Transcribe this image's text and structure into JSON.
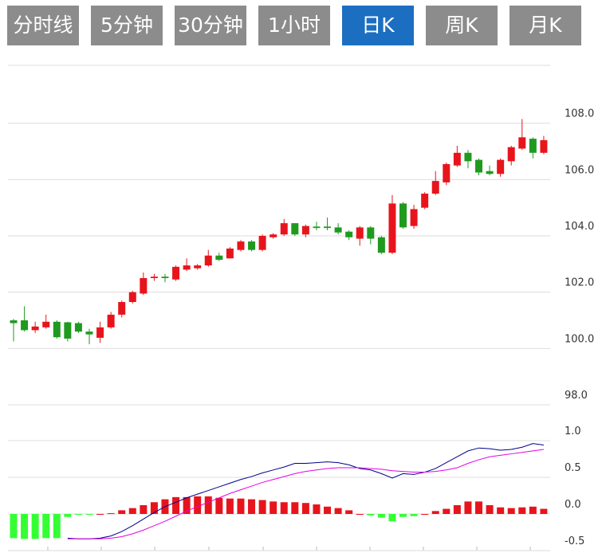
{
  "tabs": [
    "分时线",
    "5分钟",
    "30分钟",
    "1小时",
    "日K",
    "周K",
    "月K"
  ],
  "active_tab": 4,
  "chart_data": [
    {
      "type": "candlestick",
      "up_color": "#e8141c",
      "down_color": "#1f9a1f",
      "grid": true,
      "ylim": [
        98,
        110
      ],
      "yticks": [
        {
          "value": 98,
          "label": "98.0"
        },
        {
          "value": 100,
          "label": "100.0"
        },
        {
          "value": 102,
          "label": "102.0"
        },
        {
          "value": 104,
          "label": "104.0"
        },
        {
          "value": 106,
          "label": "106.0"
        },
        {
          "value": 108,
          "label": "108.0"
        }
      ],
      "open": [
        101.0,
        101.0,
        100.65,
        100.75,
        100.95,
        100.93,
        100.9,
        100.6,
        100.38,
        100.75,
        101.2,
        101.65,
        101.95,
        102.5,
        102.55,
        102.45,
        102.8,
        102.85,
        102.95,
        103.3,
        103.2,
        103.5,
        103.8,
        103.5,
        103.95,
        104.05,
        104.45,
        104.05,
        104.33,
        104.33,
        104.3,
        104.15,
        103.9,
        104.3,
        103.95,
        103.4,
        105.15,
        104.35,
        105.0,
        105.5,
        105.9,
        106.5,
        106.95,
        106.7,
        106.3,
        106.2,
        106.65,
        107.1,
        107.45,
        106.95
      ],
      "high": [
        101.05,
        101.5,
        100.95,
        101.2,
        101.0,
        100.95,
        100.95,
        100.7,
        100.95,
        101.3,
        101.7,
        102.05,
        102.7,
        102.65,
        102.65,
        102.95,
        103.2,
        103.0,
        103.5,
        103.4,
        103.6,
        103.85,
        103.85,
        104.05,
        104.1,
        104.6,
        104.45,
        104.4,
        104.5,
        104.65,
        104.45,
        104.2,
        104.35,
        104.35,
        104.0,
        105.45,
        105.2,
        105.1,
        105.55,
        106.3,
        106.6,
        107.2,
        107.05,
        106.75,
        106.5,
        106.75,
        107.2,
        108.15,
        107.5,
        107.55
      ],
      "low": [
        100.25,
        100.6,
        100.55,
        100.7,
        100.35,
        100.25,
        100.55,
        100.15,
        100.2,
        100.7,
        101.1,
        101.6,
        101.9,
        102.4,
        102.35,
        102.4,
        102.75,
        102.8,
        102.9,
        103.1,
        103.2,
        103.45,
        103.45,
        103.45,
        103.9,
        104.0,
        104.0,
        103.95,
        104.2,
        104.2,
        104.05,
        103.85,
        103.65,
        103.7,
        103.35,
        103.35,
        104.25,
        104.25,
        104.95,
        105.45,
        105.8,
        106.45,
        106.4,
        106.15,
        106.15,
        106.1,
        106.5,
        107.05,
        106.75,
        106.9
      ],
      "close": [
        100.9,
        100.65,
        100.78,
        100.95,
        100.4,
        100.35,
        100.6,
        100.5,
        100.75,
        101.2,
        101.65,
        102.0,
        102.5,
        102.55,
        102.5,
        102.9,
        102.95,
        102.95,
        103.3,
        103.15,
        103.55,
        103.8,
        103.5,
        104.0,
        104.05,
        104.45,
        104.05,
        104.35,
        104.28,
        104.28,
        104.12,
        103.95,
        104.3,
        103.9,
        103.4,
        105.15,
        104.3,
        104.95,
        105.5,
        105.95,
        106.55,
        106.95,
        106.65,
        106.25,
        106.2,
        106.7,
        107.15,
        107.5,
        106.95,
        107.4
      ]
    },
    {
      "type": "macd",
      "up_color": "#e8141c",
      "down_color": "#33ff33",
      "grid": true,
      "ylim": [
        -0.5,
        1.5
      ],
      "yticks": [
        -0.5,
        {
          "value": 0,
          "label": "0.0"
        },
        0.5,
        {
          "value": 1,
          "label": "1.0"
        }
      ],
      "histogram": [
        -0.33,
        -0.34,
        -0.34,
        -0.33,
        -0.33,
        -0.04,
        -0.01,
        -0.01,
        0.0,
        0.01,
        0.05,
        0.08,
        0.12,
        0.16,
        0.2,
        0.23,
        0.23,
        0.24,
        0.24,
        0.22,
        0.21,
        0.21,
        0.2,
        0.19,
        0.17,
        0.16,
        0.16,
        0.15,
        0.13,
        0.1,
        0.08,
        0.05,
        0.0,
        -0.02,
        -0.05,
        -0.1,
        -0.04,
        -0.03,
        0.0,
        0.04,
        0.07,
        0.12,
        0.17,
        0.17,
        0.12,
        0.09,
        0.08,
        0.09,
        0.1,
        0.07
      ],
      "lines": [
        {
          "color": "#00008b",
          "values": [
            null,
            null,
            null,
            null,
            null,
            -0.33,
            -0.34,
            -0.34,
            -0.33,
            -0.3,
            -0.24,
            -0.16,
            -0.07,
            0.02,
            0.1,
            0.16,
            0.22,
            0.27,
            0.32,
            0.37,
            0.42,
            0.47,
            0.51,
            0.56,
            0.6,
            0.64,
            0.69,
            0.69,
            0.7,
            0.71,
            0.7,
            0.67,
            0.62,
            0.6,
            0.55,
            0.49,
            0.55,
            0.54,
            0.57,
            0.62,
            0.7,
            0.78,
            0.86,
            0.9,
            0.89,
            0.87,
            0.88,
            0.91,
            0.96,
            0.94
          ]
        },
        {
          "color": "#e600e6",
          "values": [
            null,
            null,
            null,
            null,
            null,
            -0.34,
            -0.34,
            -0.34,
            -0.34,
            -0.33,
            -0.31,
            -0.27,
            -0.22,
            -0.16,
            -0.1,
            -0.03,
            0.04,
            0.1,
            0.16,
            0.22,
            0.28,
            0.33,
            0.38,
            0.43,
            0.47,
            0.51,
            0.55,
            0.58,
            0.6,
            0.62,
            0.63,
            0.63,
            0.63,
            0.62,
            0.61,
            0.59,
            0.58,
            0.57,
            0.57,
            0.58,
            0.6,
            0.63,
            0.69,
            0.74,
            0.78,
            0.8,
            0.82,
            0.84,
            0.86,
            0.88
          ]
        }
      ]
    }
  ]
}
